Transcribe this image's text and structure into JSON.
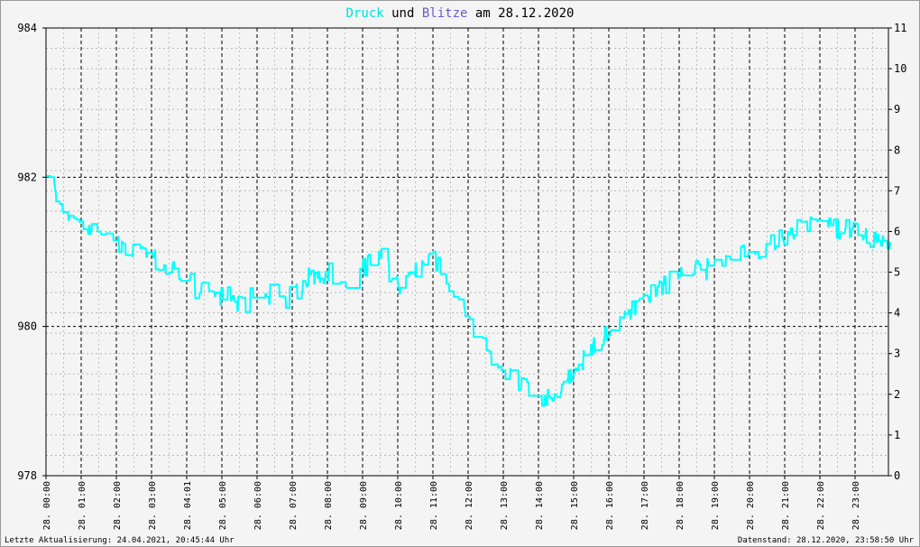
{
  "title": {
    "part1": "Druck",
    "part2": " und ",
    "part3": "Blitze",
    "part4": " am 28.12.2020",
    "color1": "#00e0e0",
    "color3": "#6a5acd"
  },
  "footer": {
    "left": "Letzte Aktualisierung: 24.04.2021, 20:45:44 Uhr",
    "right": "Datenstand: 28.12.2020, 23:58:50 Uhr"
  },
  "chart_data": {
    "type": "line",
    "title": "Druck und Blitze am 28.12.2020",
    "y_left": {
      "min": 978,
      "max": 984,
      "ticks": [
        978,
        980,
        982,
        984
      ]
    },
    "y_right": {
      "min": 0,
      "max": 11,
      "ticks": [
        0,
        1,
        2,
        3,
        4,
        5,
        6,
        7,
        8,
        9,
        10,
        11
      ]
    },
    "x_tick_labels": [
      "28. 00:00",
      "28. 01:00",
      "28. 02:00",
      "28. 03:00",
      "28. 04:01",
      "28. 05:00",
      "28. 06:00",
      "28. 07:00",
      "28. 08:00",
      "28. 09:00",
      "28. 10:00",
      "28. 11:00",
      "28. 12:00",
      "28. 13:00",
      "28. 14:00",
      "28. 15:00",
      "28. 16:00",
      "28. 17:00",
      "28. 18:00",
      "28. 19:00",
      "28. 20:00",
      "28. 21:00",
      "28. 22:00",
      "28. 23:00"
    ],
    "grid": true,
    "series": [
      {
        "name": "Druck",
        "color": "#00ffff",
        "x_hours": [
          0,
          0.25,
          0.5,
          0.75,
          1,
          1.25,
          1.5,
          1.75,
          2,
          2.25,
          2.5,
          2.75,
          3,
          3.25,
          3.5,
          3.75,
          4,
          4.25,
          4.5,
          4.75,
          5,
          5.25,
          5.5,
          5.75,
          6,
          6.25,
          6.5,
          6.75,
          7,
          7.25,
          7.5,
          7.75,
          8,
          8.25,
          8.5,
          8.75,
          9,
          9.25,
          9.5,
          9.75,
          10,
          10.25,
          10.5,
          10.75,
          11,
          11.25,
          11.5,
          11.75,
          12,
          12.25,
          12.5,
          12.75,
          13,
          13.25,
          13.5,
          13.75,
          14,
          14.25,
          14.5,
          14.75,
          15,
          15.25,
          15.5,
          15.75,
          16,
          16.25,
          16.5,
          16.75,
          17,
          17.25,
          17.5,
          17.75,
          18,
          18.25,
          18.5,
          18.75,
          19,
          19.25,
          19.5,
          19.75,
          20,
          20.25,
          20.5,
          20.75,
          21,
          21.25,
          21.5,
          21.75,
          22,
          22.25,
          22.5,
          22.75,
          23,
          23.25,
          23.5,
          23.75,
          24
        ],
        "values": [
          982.0,
          981.8,
          981.55,
          981.5,
          981.35,
          981.3,
          981.25,
          981.2,
          981.1,
          981.0,
          981.1,
          981.0,
          980.95,
          980.85,
          980.8,
          980.75,
          980.65,
          980.5,
          980.45,
          980.35,
          980.4,
          980.45,
          980.3,
          980.3,
          980.6,
          980.5,
          980.35,
          980.3,
          980.45,
          980.55,
          980.7,
          980.65,
          980.75,
          980.65,
          980.5,
          980.6,
          980.8,
          980.85,
          980.95,
          980.75,
          980.55,
          980.6,
          980.75,
          980.8,
          980.9,
          980.75,
          980.55,
          980.3,
          980.0,
          979.85,
          979.65,
          979.5,
          979.35,
          979.3,
          979.25,
          979.2,
          979.1,
          979.05,
          979.1,
          979.25,
          979.35,
          979.55,
          979.75,
          979.85,
          979.95,
          980.05,
          980.15,
          980.25,
          980.4,
          980.5,
          980.55,
          980.6,
          980.65,
          980.7,
          980.75,
          980.75,
          980.85,
          980.9,
          980.95,
          980.95,
          981.0,
          981.05,
          981.1,
          981.15,
          981.2,
          981.25,
          981.35,
          981.4,
          981.45,
          981.35,
          981.3,
          981.3,
          981.35,
          981.2,
          981.15,
          981.1,
          981.05
        ]
      }
    ]
  }
}
